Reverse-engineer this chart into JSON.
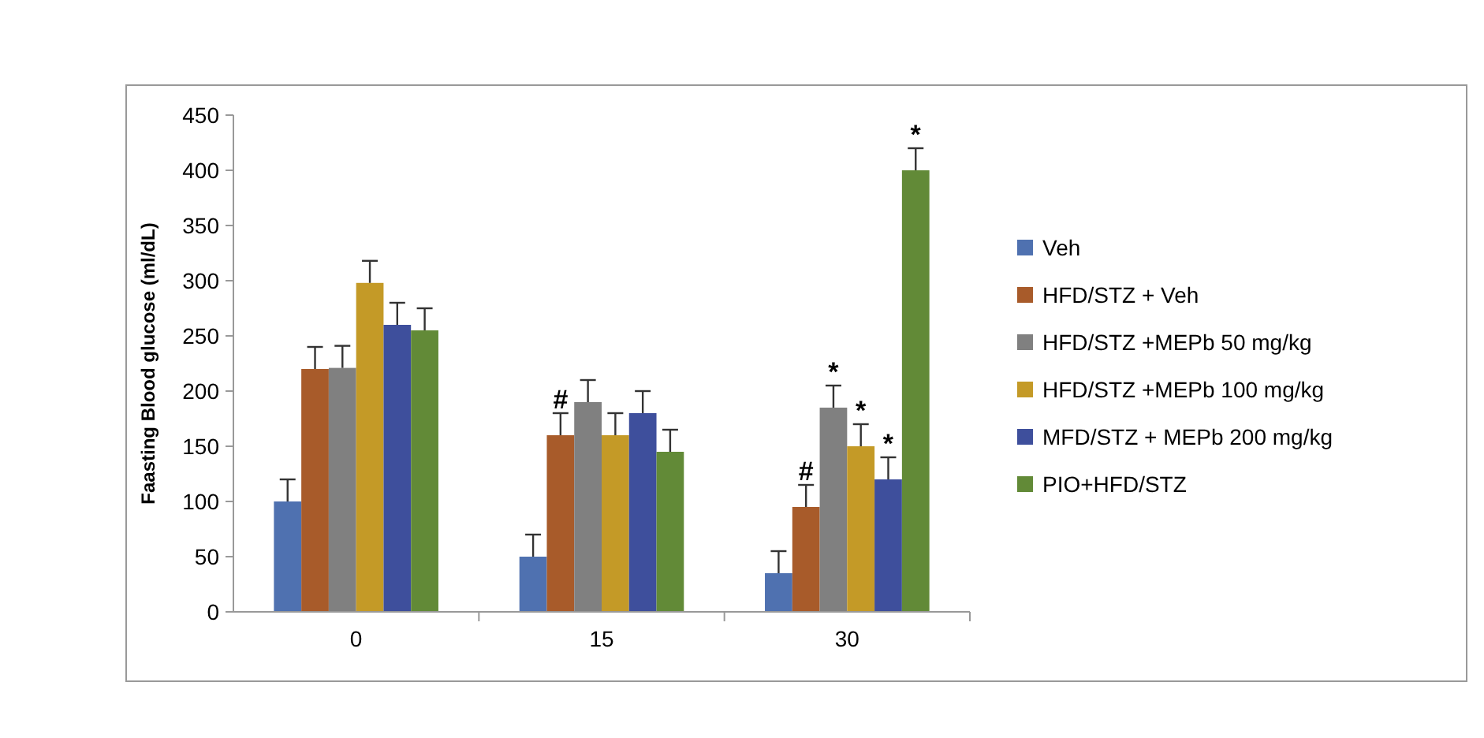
{
  "chart_data": {
    "type": "bar",
    "ylabel": "Faasting Blood glucose (ml/dL)",
    "categories": [
      "0",
      "15",
      "30"
    ],
    "series": [
      {
        "name": "Veh",
        "color": "#4f71b0",
        "values": [
          100,
          50,
          35
        ],
        "errors": [
          20,
          20,
          20
        ]
      },
      {
        "name": "HFD/STZ + Veh",
        "color": "#a85b2a",
        "values": [
          220,
          160,
          95
        ],
        "errors": [
          20,
          20,
          20
        ]
      },
      {
        "name": "HFD/STZ +MEPb 50 mg/kg",
        "color": "#808080",
        "values": [
          221,
          190,
          185
        ],
        "errors": [
          20,
          20,
          20
        ]
      },
      {
        "name": "HFD/STZ +MEPb 100 mg/kg",
        "color": "#c49a27",
        "values": [
          298,
          160,
          150
        ],
        "errors": [
          20,
          20,
          20
        ]
      },
      {
        "name": "MFD/STZ + MEPb 200 mg/kg",
        "color": "#3e4f9c",
        "values": [
          260,
          180,
          120
        ],
        "errors": [
          20,
          20,
          20
        ]
      },
      {
        "name": "PIO+HFD/STZ",
        "color": "#628a37",
        "values": [
          255,
          145,
          400
        ],
        "errors": [
          20,
          20,
          20
        ]
      }
    ],
    "ylim": [
      0,
      450
    ],
    "yticks": [
      0,
      50,
      100,
      150,
      200,
      250,
      300,
      350,
      400,
      450
    ],
    "grid": false,
    "legend": "right",
    "annotations": [
      {
        "text": "#",
        "x": "15",
        "y": 180
      },
      {
        "text": "#",
        "x": "30",
        "y": 115
      },
      {
        "text": "*",
        "x": "30",
        "y": 205
      },
      {
        "text": "*",
        "x": "30",
        "y": 170
      },
      {
        "text": "*",
        "x": "30",
        "y": 140
      },
      "*"
    ]
  }
}
